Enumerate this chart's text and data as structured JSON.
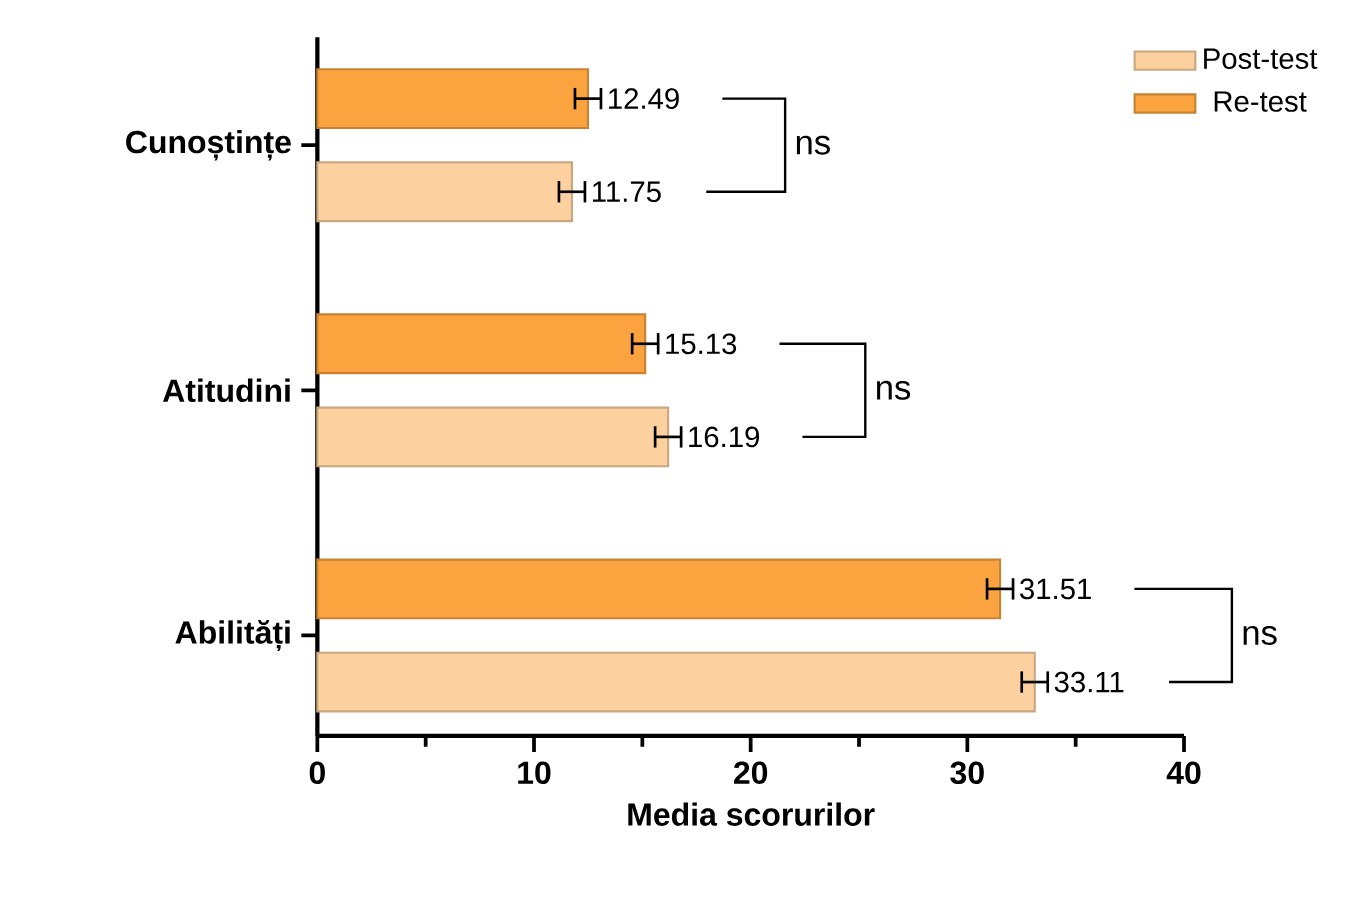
{
  "chart_data": {
    "type": "bar",
    "orientation": "horizontal",
    "xlabel": "Media scorurilor",
    "categories": [
      "Cunoștințe",
      "Atitudini",
      "Abilități"
    ],
    "series": [
      {
        "name": "Post-test",
        "color": "#fdd19f",
        "values": [
          11.75,
          16.19,
          33.11
        ],
        "errors": [
          0.6,
          0.6,
          0.6
        ]
      },
      {
        "name": "Re-test",
        "color": "#fba33f",
        "values": [
          12.49,
          15.13,
          31.51
        ],
        "errors": [
          0.6,
          0.6,
          0.6
        ]
      }
    ],
    "xlim": [
      0,
      40
    ],
    "xticks": [
      0,
      {
        "value": 5,
        "label": null
      },
      10,
      {
        "value": 15,
        "label": null
      },
      20,
      {
        "value": 25,
        "label": null
      },
      30,
      {
        "value": 35,
        "label": null
      },
      40
    ],
    "data_labels": true,
    "legend": "top right",
    "grid": false,
    "annotations": [
      "ns",
      "ns",
      "ns"
    ]
  }
}
